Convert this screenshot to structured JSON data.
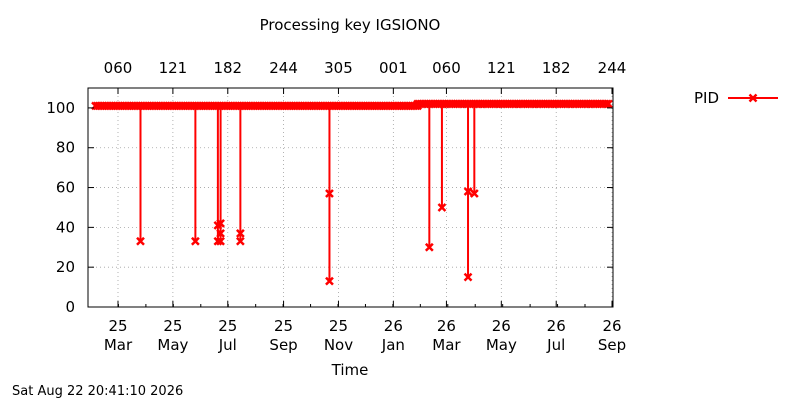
{
  "chart_data": {
    "type": "line",
    "title": "Processing key IGSIONO",
    "xlabel": "Time",
    "ylabel": "",
    "ylim": [
      0,
      110
    ],
    "xlim": [
      -27,
      547
    ],
    "x_unit_note": "",
    "yticks": [
      0,
      20,
      40,
      60,
      80,
      100
    ],
    "xticks_bottom": [
      {
        "x": 0,
        "line1": "25",
        "line2": "Mar"
      },
      {
        "x": 61,
        "line1": "25",
        "line2": "May"
      },
      {
        "x": 122,
        "line1": "25",
        "line2": "Jul"
      },
      {
        "x": 184,
        "line1": "25",
        "line2": "Sep"
      },
      {
        "x": 245,
        "line1": "25",
        "line2": "Nov"
      },
      {
        "x": 306,
        "line1": "26",
        "line2": "Jan"
      },
      {
        "x": 365,
        "line1": "26",
        "line2": "Mar"
      },
      {
        "x": 426,
        "line1": "26",
        "line2": "May"
      },
      {
        "x": 487,
        "line1": "26",
        "line2": "Jul"
      },
      {
        "x": 549,
        "line1": "26",
        "line2": "Sep"
      }
    ],
    "xticks_top": [
      {
        "x": 0,
        "label": "060"
      },
      {
        "x": 61,
        "label": "121"
      },
      {
        "x": 122,
        "label": "182"
      },
      {
        "x": 184,
        "label": "244"
      },
      {
        "x": 245,
        "label": "305"
      },
      {
        "x": 306,
        "label": "001"
      },
      {
        "x": 365,
        "label": "060"
      },
      {
        "x": 426,
        "label": "121"
      },
      {
        "x": 487,
        "label": "182"
      },
      {
        "x": 549,
        "label": "244"
      }
    ],
    "grid": true,
    "legend": {
      "position": "top-right",
      "entries": [
        {
          "name": "PID",
          "color": "#ff0000",
          "marker": "x"
        }
      ]
    },
    "series": [
      {
        "name": "PID",
        "color": "#ff0000",
        "segments": [
          {
            "x_start": -25,
            "x_end": 333,
            "y": 101
          },
          {
            "x_start": 333,
            "x_end": 545,
            "y": 102
          }
        ],
        "dips": [
          {
            "x": 25,
            "values": [
              67,
              33
            ]
          },
          {
            "x": 86,
            "values": [
              67,
              33
            ]
          },
          {
            "x": 111,
            "values": [
              72,
              41,
              33
            ]
          },
          {
            "x": 114,
            "values": [
              70,
              42,
              37,
              33
            ]
          },
          {
            "x": 136,
            "values": [
              67,
              37,
              33
            ]
          },
          {
            "x": 235,
            "values": [
              57,
              13
            ]
          },
          {
            "x": 346,
            "values": [
              66,
              30
            ]
          },
          {
            "x": 360,
            "values": [
              76,
              50
            ]
          },
          {
            "x": 389,
            "values": [
              58,
              15
            ]
          },
          {
            "x": 396,
            "values": [
              80,
              57
            ]
          }
        ]
      }
    ]
  },
  "footer": {
    "timestamp": "Sat Aug 22 20:41:10 2026"
  }
}
